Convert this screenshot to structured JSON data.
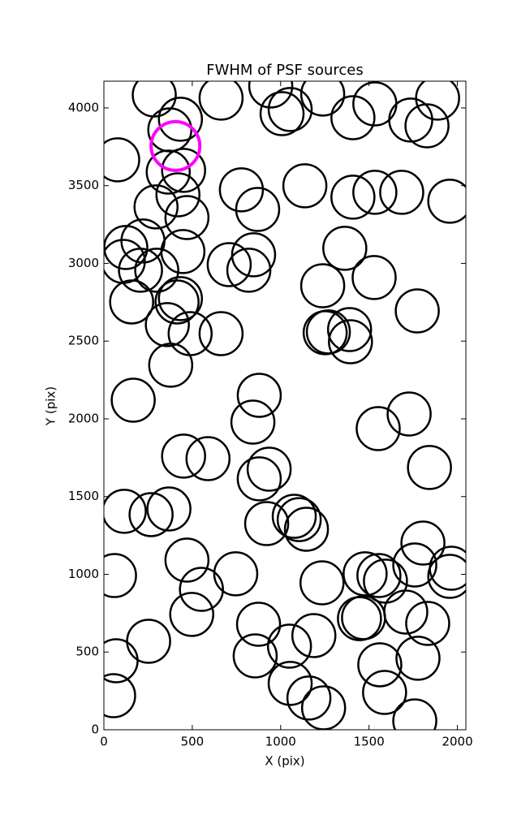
{
  "chart_data": {
    "type": "scatter",
    "title": "FWHM of PSF sources",
    "x_label": "X (pix)",
    "y_label": "Y (pix)",
    "xlim": [
      0,
      2048
    ],
    "ylim": [
      0,
      4172
    ],
    "xticks": [
      0,
      500,
      1000,
      1500,
      2000
    ],
    "yticks": [
      0,
      500,
      1000,
      1500,
      2000,
      2500,
      3000,
      3500,
      4000
    ],
    "series": [
      {
        "color": "#000000",
        "x": [
          78,
          285,
          373,
          433,
          364,
          451,
          419,
          470,
          295,
          221,
          124,
          110,
          207,
          299,
          447,
          157,
          433,
          414,
          359,
          488,
          663,
          378,
          166,
          451,
          589,
          115,
          267,
          368,
          470,
          552,
          497,
          253,
          60,
          69,
          55,
          663,
          778,
          870,
          709,
          847,
          820,
          879,
          843,
          935,
          879,
          921,
          746,
          875,
          856,
          944,
          1008,
          1054,
          1137,
          1077,
          1105,
          1146,
          1050,
          1054,
          1188,
          1160,
          1243,
          1234,
          1238,
          1409,
          1238,
          1252,
          1270,
          1363,
          1409,
          1533,
          1685,
          1533,
          1390,
          1395,
          1529,
          1773,
          1727,
          1552,
          1842,
          1446,
          1469,
          1478,
          1556,
          1593,
          1561,
          1588,
          1708,
          1777,
          1759,
          1759,
          1805,
          1832,
          1736,
          1828,
          1888,
          1957,
          1957,
          1966
        ],
        "y": [
          3666,
          4083,
          3859,
          3927,
          3587,
          3598,
          3441,
          3295,
          3363,
          3144,
          3102,
          3013,
          2956,
          2956,
          3076,
          2752,
          2773,
          2752,
          2606,
          2548,
          2548,
          2345,
          2120,
          1760,
          1744,
          1405,
          1384,
          1420,
          1091,
          903,
          742,
          569,
          992,
          444,
          219,
          4063,
          3473,
          3347,
          2992,
          3055,
          2956,
          2151,
          1979,
          1676,
          1614,
          1326,
          1003,
          679,
          475,
          4141,
          3963,
          3990,
          3499,
          1373,
          1352,
          1290,
          538,
          298,
          606,
          204,
          141,
          945,
          4089,
          3937,
          2856,
          2554,
          2559,
          3097,
          3426,
          3457,
          3457,
          4026,
          2574,
          2496,
          2909,
          2694,
          2031,
          1937,
          1687,
          715,
          721,
          1003,
          992,
          956,
          418,
          240,
          757,
          460,
          57,
          1060,
          1201,
          684,
          3922,
          3885,
          4063,
          3400,
          987,
          1039
        ]
      },
      {
        "color": "#ff00ff",
        "x": [
          405
        ],
        "y": [
          3755
        ]
      }
    ]
  }
}
